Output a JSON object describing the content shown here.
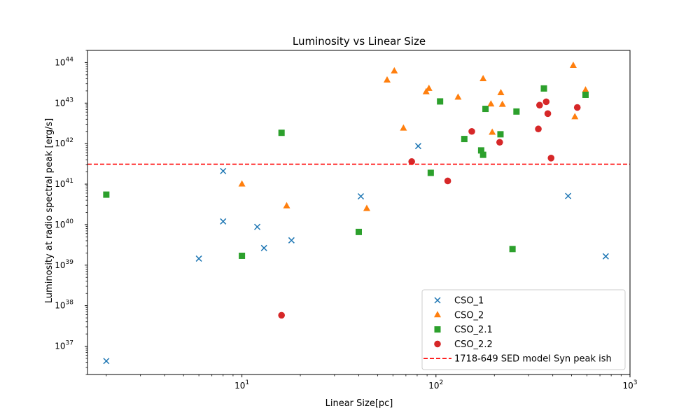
{
  "chart_data": {
    "type": "scatter",
    "title": "Luminosity vs Linear Size",
    "xlabel": "Linear Size[pc]",
    "ylabel": "Luminosity at radio spectral peak [erg/s]",
    "xscale": "log",
    "yscale": "log",
    "xlim": [
      1.6,
      1000
    ],
    "ylim": [
      2e+36,
      2e+44
    ],
    "x_ticks": [
      {
        "value": 10,
        "label": "10",
        "exp": "1"
      },
      {
        "value": 100,
        "label": "10",
        "exp": "2"
      },
      {
        "value": 1000,
        "label": "10",
        "exp": "3"
      }
    ],
    "y_ticks": [
      {
        "value": 1e+37,
        "label": "10",
        "exp": "37"
      },
      {
        "value": 1e+38,
        "label": "10",
        "exp": "38"
      },
      {
        "value": 1e+39,
        "label": "10",
        "exp": "39"
      },
      {
        "value": 1e+40,
        "label": "10",
        "exp": "40"
      },
      {
        "value": 1e+41,
        "label": "10",
        "exp": "41"
      },
      {
        "value": 1e+42,
        "label": "10",
        "exp": "42"
      },
      {
        "value": 1e+43,
        "label": "10",
        "exp": "43"
      },
      {
        "value": 1e+44,
        "label": "10",
        "exp": "44"
      }
    ],
    "grid": false,
    "legend_position": "lower-right",
    "series": [
      {
        "name": "CSO_1",
        "marker": "x",
        "color": "#1f77b4",
        "points": [
          [
            2,
            4.3e+36
          ],
          [
            6,
            1.45e+39
          ],
          [
            8,
            2.1e+41
          ],
          [
            8,
            1.2e+40
          ],
          [
            12,
            8.8e+39
          ],
          [
            13,
            2.65e+39
          ],
          [
            18,
            4.1e+39
          ],
          [
            41,
            5e+40
          ],
          [
            81,
            8.7e+41
          ],
          [
            480,
            5.1e+40
          ],
          [
            750,
            1.65e+39
          ]
        ]
      },
      {
        "name": "CSO_2",
        "marker": "triangle",
        "color": "#ff7f0e",
        "points": [
          [
            10,
            1e+41
          ],
          [
            17,
            2.9e+40
          ],
          [
            44,
            2.5e+40
          ],
          [
            56,
            3.7e+43
          ],
          [
            61,
            6.2e+43
          ],
          [
            68,
            2.4e+42
          ],
          [
            89,
            1.9e+43
          ],
          [
            92,
            2.3e+43
          ],
          [
            130,
            1.4e+43
          ],
          [
            175,
            4e+43
          ],
          [
            192,
            9.5e+42
          ],
          [
            195,
            1.9e+42
          ],
          [
            216,
            1.8e+43
          ],
          [
            220,
            9.3e+42
          ],
          [
            510,
            8.5e+43
          ],
          [
            520,
            4.6e+42
          ],
          [
            590,
            2.1e+43
          ]
        ]
      },
      {
        "name": "CSO_2.1",
        "marker": "square",
        "color": "#2ca02c",
        "points": [
          [
            2,
            5.5e+40
          ],
          [
            10,
            1.7e+39
          ],
          [
            16,
            1.85e+42
          ],
          [
            40,
            6.6e+39
          ],
          [
            94,
            1.9e+41
          ],
          [
            105,
            1.1e+43
          ],
          [
            140,
            1.3e+42
          ],
          [
            171,
            6.8e+41
          ],
          [
            175,
            5.3e+41
          ],
          [
            180,
            7.2e+42
          ],
          [
            215,
            1.7e+42
          ],
          [
            248,
            2.5e+39
          ],
          [
            260,
            6.2e+42
          ],
          [
            360,
            2.3e+43
          ],
          [
            590,
            1.6e+43
          ]
        ]
      },
      {
        "name": "CSO_2.2",
        "marker": "circle",
        "color": "#d62728",
        "points": [
          [
            16,
            5.8e+37
          ],
          [
            75,
            3.6e+41
          ],
          [
            115,
            1.2e+41
          ],
          [
            153,
            2e+42
          ],
          [
            213,
            1.08e+42
          ],
          [
            337,
            2.3e+42
          ],
          [
            342,
            8.9e+42
          ],
          [
            370,
            1.08e+43
          ],
          [
            377,
            5.5e+42
          ],
          [
            392,
            4.4e+41
          ],
          [
            535,
            7.8e+42
          ]
        ]
      },
      {
        "name": "1718-649 SED model Syn peak ish",
        "marker": "dashed-hline",
        "color": "#ff0000",
        "y": 3.1e+41
      }
    ]
  }
}
